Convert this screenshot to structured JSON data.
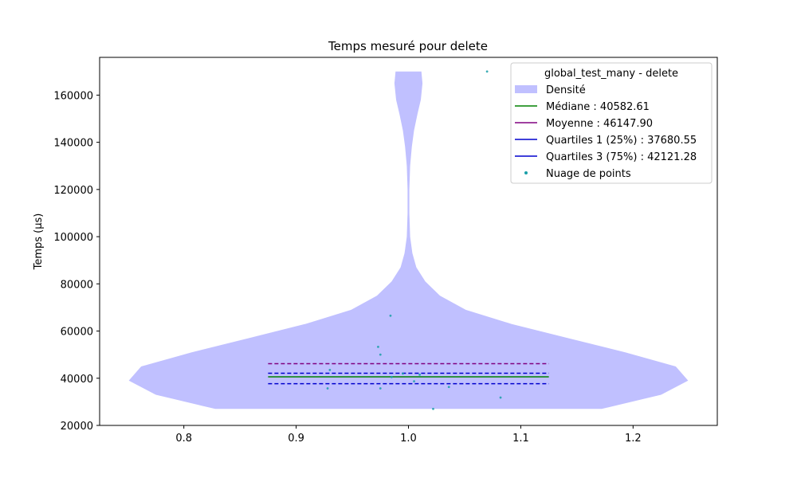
{
  "chart_data": {
    "type": "violin",
    "title": "Temps mesuré pour delete",
    "xlabel": "",
    "ylabel": "Temps (µs)",
    "xlim": [
      0.725,
      1.275
    ],
    "ylim": [
      20000,
      176000
    ],
    "xticks": [
      0.8,
      0.9,
      1.0,
      1.1,
      1.2
    ],
    "xtick_labels": [
      "0.8",
      "0.9",
      "1.0",
      "1.1",
      "1.2"
    ],
    "yticks": [
      20000,
      40000,
      60000,
      80000,
      100000,
      120000,
      140000,
      160000
    ],
    "ytick_labels": [
      "20000",
      "40000",
      "60000",
      "80000",
      "100000",
      "120000",
      "140000",
      "160000"
    ],
    "grid": false,
    "legend_position": "top-right",
    "legend_title": "global_test_many - delete",
    "colors": {
      "density": "#c0c0ff",
      "median": "#008000",
      "mean": "#800080",
      "quartile": "#0000cd",
      "points": "#1a9fa8"
    },
    "density": {
      "name": "Densité",
      "center": 1.0,
      "profile": [
        {
          "y": 27000,
          "half_width": 0.172
        },
        {
          "y": 33000,
          "half_width": 0.225
        },
        {
          "y": 39000,
          "half_width": 0.249
        },
        {
          "y": 45000,
          "half_width": 0.238
        },
        {
          "y": 51000,
          "half_width": 0.193
        },
        {
          "y": 57000,
          "half_width": 0.142
        },
        {
          "y": 63000,
          "half_width": 0.092
        },
        {
          "y": 69000,
          "half_width": 0.051
        },
        {
          "y": 75000,
          "half_width": 0.028
        },
        {
          "y": 81000,
          "half_width": 0.015
        },
        {
          "y": 87000,
          "half_width": 0.007
        },
        {
          "y": 93000,
          "half_width": 0.0035
        },
        {
          "y": 100000,
          "half_width": 0.0015
        },
        {
          "y": 110000,
          "half_width": 0.0008
        },
        {
          "y": 120000,
          "half_width": 0.0008
        },
        {
          "y": 130000,
          "half_width": 0.0015
        },
        {
          "y": 138000,
          "half_width": 0.003
        },
        {
          "y": 145000,
          "half_width": 0.005
        },
        {
          "y": 152000,
          "half_width": 0.008
        },
        {
          "y": 158000,
          "half_width": 0.011
        },
        {
          "y": 165000,
          "half_width": 0.0125
        },
        {
          "y": 170000,
          "half_width": 0.0115
        }
      ]
    },
    "lines": [
      {
        "key": "median",
        "name": "Médiane : 40582.61",
        "y": 40582.61,
        "x": [
          0.875,
          1.125
        ],
        "style": "solid"
      },
      {
        "key": "mean",
        "name": "Moyenne : 46147.90",
        "y": 46147.9,
        "x": [
          0.875,
          1.125
        ],
        "style": "dashed"
      },
      {
        "key": "q1",
        "name": "Quartiles 1 (25%) : 37680.55",
        "y": 37680.55,
        "x": [
          0.875,
          1.125
        ],
        "style": "dashed"
      },
      {
        "key": "q3",
        "name": "Quartiles 3 (75%) : 42121.28",
        "y": 42121.28,
        "x": [
          0.875,
          1.125
        ],
        "style": "dashed"
      }
    ],
    "points": {
      "name": "Nuage de points",
      "data": [
        {
          "x": 1.07,
          "y": 170000
        },
        {
          "x": 0.984,
          "y": 66500
        },
        {
          "x": 0.973,
          "y": 53300
        },
        {
          "x": 0.975,
          "y": 50000
        },
        {
          "x": 0.93,
          "y": 43500
        },
        {
          "x": 0.995,
          "y": 42000
        },
        {
          "x": 1.01,
          "y": 41500
        },
        {
          "x": 0.985,
          "y": 40500
        },
        {
          "x": 1.005,
          "y": 38700
        },
        {
          "x": 1.036,
          "y": 36300
        },
        {
          "x": 0.928,
          "y": 35700
        },
        {
          "x": 0.975,
          "y": 35700
        },
        {
          "x": 1.082,
          "y": 31800
        },
        {
          "x": 1.022,
          "y": 27000
        }
      ]
    },
    "legend": [
      {
        "kind": "patch",
        "key": "density",
        "label": "Densité"
      },
      {
        "kind": "line",
        "key": "median",
        "label": "Médiane : 40582.61"
      },
      {
        "kind": "line",
        "key": "mean",
        "label": "Moyenne : 46147.90"
      },
      {
        "kind": "line",
        "key": "quartile",
        "label": "Quartiles 1 (25%) : 37680.55"
      },
      {
        "kind": "line",
        "key": "quartile",
        "label": "Quartiles 3 (75%) : 42121.28"
      },
      {
        "kind": "point",
        "key": "points",
        "label": "Nuage de points"
      }
    ]
  }
}
